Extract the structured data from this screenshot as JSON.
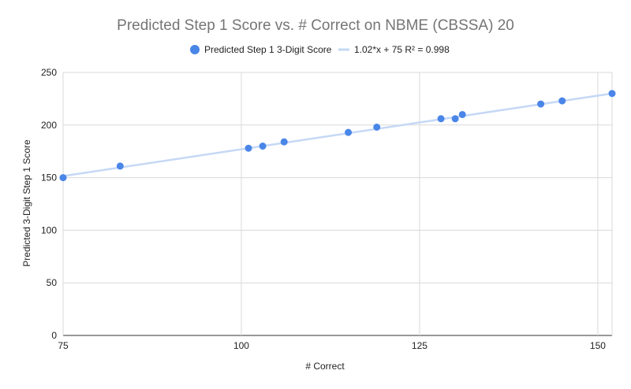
{
  "chart_data": {
    "type": "scatter",
    "title": "Predicted Step 1 Score vs. # Correct on NBME (CBSSA) 20",
    "xlabel": "# Correct",
    "ylabel": "Predicted 3-Digit Step 1 Score",
    "xlim": [
      75,
      152
    ],
    "ylim": [
      0,
      250
    ],
    "x_ticks": [
      75,
      100,
      125,
      150
    ],
    "y_ticks": [
      0,
      50,
      100,
      150,
      200,
      250
    ],
    "grid": true,
    "legend_position": "top",
    "series": [
      {
        "name": "Predicted Step 1 3-Digit Score",
        "color": "#4a86e8",
        "points": [
          {
            "x": 75,
            "y": 150
          },
          {
            "x": 83,
            "y": 161
          },
          {
            "x": 101,
            "y": 178
          },
          {
            "x": 103,
            "y": 180
          },
          {
            "x": 106,
            "y": 184
          },
          {
            "x": 115,
            "y": 193
          },
          {
            "x": 119,
            "y": 198
          },
          {
            "x": 128,
            "y": 206
          },
          {
            "x": 130,
            "y": 206
          },
          {
            "x": 131,
            "y": 210
          },
          {
            "x": 142,
            "y": 220
          },
          {
            "x": 145,
            "y": 223
          },
          {
            "x": 152,
            "y": 230
          }
        ]
      }
    ],
    "trendline": {
      "label": "1.02*x + 75 R² = 0.998",
      "color": "#c5d8f5",
      "from": {
        "x": 75,
        "y": 151.5
      },
      "to": {
        "x": 152,
        "y": 230
      }
    }
  }
}
